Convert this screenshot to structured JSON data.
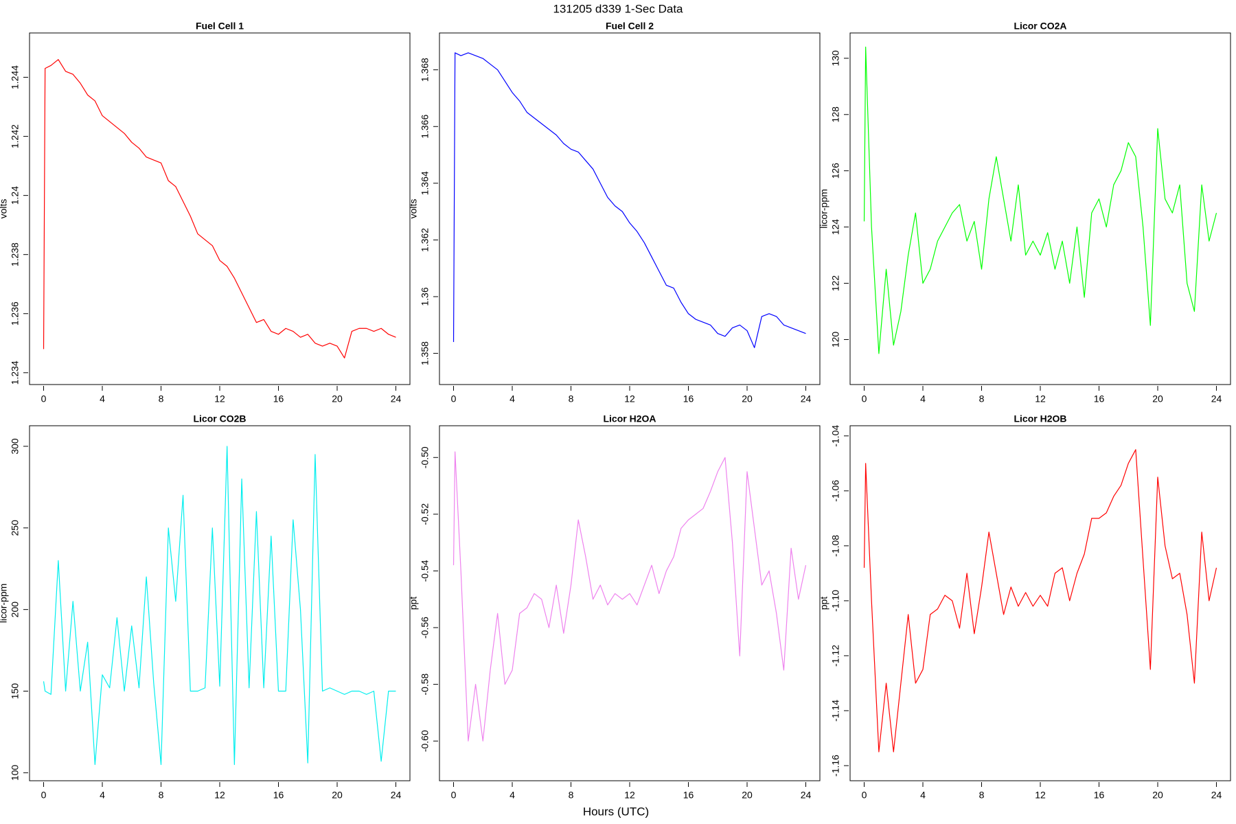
{
  "title": "131205   d339   1-Sec Data",
  "xlabel": "Hours (UTC)",
  "chart_data": [
    {
      "type": "line",
      "title": "Fuel Cell 1",
      "ylabel": "volts",
      "color": "#ff0000",
      "x": [
        0,
        0.1,
        0.5,
        1,
        1.5,
        2,
        2.5,
        3,
        3.5,
        4,
        4.5,
        5,
        5.5,
        6,
        6.5,
        7,
        7.5,
        8,
        8.5,
        9,
        9.5,
        10,
        10.5,
        11,
        11.5,
        12,
        12.5,
        13,
        13.5,
        14,
        14.5,
        15,
        15.5,
        16,
        16.5,
        17,
        17.5,
        18,
        18.5,
        19,
        19.5,
        20,
        20.5,
        21,
        21.5,
        22,
        22.5,
        23,
        23.5,
        24
      ],
      "values": [
        1.2348,
        1.2443,
        1.2444,
        1.2446,
        1.2442,
        1.2441,
        1.2438,
        1.2434,
        1.2432,
        1.2427,
        1.2425,
        1.2423,
        1.2421,
        1.2418,
        1.2416,
        1.2413,
        1.2412,
        1.2411,
        1.2405,
        1.2403,
        1.2398,
        1.2393,
        1.2387,
        1.2385,
        1.2383,
        1.2378,
        1.2376,
        1.2372,
        1.2367,
        1.2362,
        1.2357,
        1.2358,
        1.2354,
        1.2353,
        1.2355,
        1.2354,
        1.2352,
        1.2353,
        1.235,
        1.2349,
        1.235,
        1.2349,
        1.2345,
        1.2354,
        1.2355,
        1.2355,
        1.2354,
        1.2355,
        1.2353,
        1.2352
      ],
      "xlim": [
        -0.96,
        24.96
      ],
      "xticks": [
        0,
        4,
        8,
        12,
        16,
        20,
        24
      ],
      "ylim": [
        1.2336,
        1.2455
      ],
      "yticks": [
        1.234,
        1.236,
        1.238,
        1.24,
        1.242,
        1.244
      ]
    },
    {
      "type": "line",
      "title": "Fuel Cell 2",
      "ylabel": "volts",
      "color": "#0000ff",
      "x": [
        0,
        0.1,
        0.5,
        1,
        1.5,
        2,
        2.5,
        3,
        3.5,
        4,
        4.5,
        5,
        5.5,
        6,
        6.5,
        7,
        7.5,
        8,
        8.5,
        9,
        9.5,
        10,
        10.5,
        11,
        11.5,
        12,
        12.5,
        13,
        13.5,
        14,
        14.5,
        15,
        15.5,
        16,
        16.5,
        17,
        17.5,
        18,
        18.5,
        19,
        19.5,
        20,
        20.5,
        21,
        21.5,
        22,
        22.5,
        23,
        23.5,
        24
      ],
      "values": [
        1.3584,
        1.3686,
        1.3685,
        1.3686,
        1.3685,
        1.3684,
        1.3682,
        1.368,
        1.3676,
        1.3672,
        1.3669,
        1.3665,
        1.3663,
        1.3661,
        1.3659,
        1.3657,
        1.3654,
        1.3652,
        1.3651,
        1.3648,
        1.3645,
        1.364,
        1.3635,
        1.3632,
        1.363,
        1.3626,
        1.3623,
        1.3619,
        1.3614,
        1.3609,
        1.3604,
        1.3603,
        1.3598,
        1.3594,
        1.3592,
        1.3591,
        1.359,
        1.3587,
        1.3586,
        1.3589,
        1.359,
        1.3588,
        1.3582,
        1.3593,
        1.3594,
        1.3593,
        1.359,
        1.3589,
        1.3588,
        1.3587
      ],
      "xlim": [
        -0.96,
        24.96
      ],
      "xticks": [
        0,
        4,
        8,
        12,
        16,
        20,
        24
      ],
      "ylim": [
        1.3569,
        1.3693
      ],
      "yticks": [
        1.358,
        1.36,
        1.362,
        1.364,
        1.366,
        1.368
      ]
    },
    {
      "type": "line",
      "title": "Licor CO2A",
      "ylabel": "licor-ppm",
      "color": "#00ff00",
      "x": [
        0,
        0.1,
        0.5,
        1,
        1.5,
        2,
        2.5,
        3,
        3.5,
        4,
        4.5,
        5,
        5.5,
        6,
        6.5,
        7,
        7.5,
        8,
        8.5,
        9,
        9.5,
        10,
        10.5,
        11,
        11.5,
        12,
        12.5,
        13,
        13.5,
        14,
        14.5,
        15,
        15.5,
        16,
        16.5,
        17,
        17.5,
        18,
        18.5,
        19,
        19.5,
        20,
        20.5,
        21,
        21.5,
        22,
        22.5,
        23,
        23.5,
        24
      ],
      "values": [
        124.2,
        130.4,
        124,
        119.5,
        122.5,
        119.8,
        121,
        123,
        124.5,
        122,
        122.5,
        123.5,
        124,
        124.5,
        124.8,
        123.5,
        124.2,
        122.5,
        125,
        126.5,
        125,
        123.5,
        125.5,
        123,
        123.5,
        123,
        123.8,
        122.5,
        123.5,
        122,
        124,
        121.5,
        124.5,
        125,
        124,
        125.5,
        126,
        127,
        126.5,
        124,
        120.5,
        127.5,
        125,
        124.5,
        125.5,
        122,
        121,
        125.5,
        123.5,
        124.5
      ],
      "xlim": [
        -0.96,
        24.96
      ],
      "xticks": [
        0,
        4,
        8,
        12,
        16,
        20,
        24
      ],
      "ylim": [
        118.4,
        130.9
      ],
      "yticks": [
        120,
        122,
        124,
        126,
        128,
        130
      ]
    },
    {
      "type": "line",
      "title": "Licor CO2B",
      "ylabel": "licor-ppm",
      "color": "#00eeee",
      "x": [
        0,
        0.1,
        0.5,
        1,
        1.5,
        2,
        2.5,
        3,
        3.5,
        4,
        4.5,
        5,
        5.5,
        6,
        6.5,
        7,
        7.5,
        8,
        8.5,
        9,
        9.5,
        10,
        10.5,
        11,
        11.5,
        12,
        12.5,
        13,
        13.5,
        14,
        14.5,
        15,
        15.5,
        16,
        16.5,
        17,
        17.5,
        18,
        18.5,
        19,
        19.5,
        20,
        20.5,
        21,
        21.5,
        22,
        22.5,
        23,
        23.5,
        24
      ],
      "values": [
        156,
        150,
        148,
        230,
        150,
        205,
        150,
        180,
        105,
        160,
        152,
        195,
        150,
        190,
        152,
        220,
        155,
        105,
        250,
        205,
        270,
        150,
        150,
        152,
        250,
        153,
        300,
        105,
        280,
        152,
        260,
        152,
        245,
        150,
        150,
        255,
        200,
        106,
        295,
        150,
        152,
        150,
        148,
        150,
        150,
        148,
        150,
        107,
        150,
        150
      ],
      "xlim": [
        -0.96,
        24.96
      ],
      "xticks": [
        0,
        4,
        8,
        12,
        16,
        20,
        24
      ],
      "ylim": [
        95.1,
        312.6
      ],
      "yticks": [
        100,
        150,
        200,
        250,
        300
      ]
    },
    {
      "type": "line",
      "title": "Licor H2OA",
      "ylabel": "ppt",
      "color": "#ee82ee",
      "x": [
        0,
        0.1,
        0.5,
        1,
        1.5,
        2,
        2.5,
        3,
        3.5,
        4,
        4.5,
        5,
        5.5,
        6,
        6.5,
        7,
        7.5,
        8,
        8.5,
        9,
        9.5,
        10,
        10.5,
        11,
        11.5,
        12,
        12.5,
        13,
        13.5,
        14,
        14.5,
        15,
        15.5,
        16,
        16.5,
        17,
        17.5,
        18,
        18.5,
        19,
        19.5,
        20,
        20.5,
        21,
        21.5,
        22,
        22.5,
        23,
        23.5,
        24
      ],
      "values": [
        -0.538,
        -0.498,
        -0.54,
        -0.6,
        -0.58,
        -0.6,
        -0.575,
        -0.555,
        -0.58,
        -0.575,
        -0.555,
        -0.553,
        -0.548,
        -0.55,
        -0.56,
        -0.545,
        -0.562,
        -0.545,
        -0.522,
        -0.535,
        -0.55,
        -0.545,
        -0.552,
        -0.548,
        -0.55,
        -0.548,
        -0.552,
        -0.545,
        -0.538,
        -0.548,
        -0.54,
        -0.535,
        -0.525,
        -0.522,
        -0.52,
        -0.518,
        -0.512,
        -0.505,
        -0.5,
        -0.53,
        -0.57,
        -0.505,
        -0.525,
        -0.545,
        -0.54,
        -0.555,
        -0.575,
        -0.532,
        -0.55,
        -0.538
      ],
      "xlim": [
        -0.96,
        24.96
      ],
      "xticks": [
        0,
        4,
        8,
        12,
        16,
        20,
        24
      ],
      "ylim": [
        -0.614,
        -0.4888
      ],
      "yticks": [
        {
          "value": -0.6,
          "label": "-0.60"
        },
        -0.58,
        -0.56,
        -0.54,
        -0.52,
        {
          "value": -0.5,
          "label": "-0.50"
        }
      ]
    },
    {
      "type": "line",
      "title": "Licor H2OB",
      "ylabel": "ppt",
      "color": "#ff0000",
      "x": [
        0,
        0.1,
        0.5,
        1,
        1.5,
        2,
        2.5,
        3,
        3.5,
        4,
        4.5,
        5,
        5.5,
        6,
        6.5,
        7,
        7.5,
        8,
        8.5,
        9,
        9.5,
        10,
        10.5,
        11,
        11.5,
        12,
        12.5,
        13,
        13.5,
        14,
        14.5,
        15,
        15.5,
        16,
        16.5,
        17,
        17.5,
        18,
        18.5,
        19,
        19.5,
        20,
        20.5,
        21,
        21.5,
        22,
        22.5,
        23,
        23.5,
        24
      ],
      "values": [
        -1.088,
        -1.05,
        -1.1,
        -1.155,
        -1.13,
        -1.155,
        -1.13,
        -1.105,
        -1.13,
        -1.125,
        -1.105,
        -1.103,
        -1.098,
        -1.1,
        -1.11,
        -1.09,
        -1.112,
        -1.095,
        -1.075,
        -1.09,
        -1.105,
        -1.095,
        -1.102,
        -1.097,
        -1.102,
        -1.098,
        -1.102,
        -1.09,
        -1.088,
        -1.1,
        -1.09,
        -1.083,
        -1.07,
        -1.07,
        -1.068,
        -1.062,
        -1.058,
        -1.05,
        -1.045,
        -1.085,
        -1.125,
        -1.055,
        -1.08,
        -1.092,
        -1.09,
        -1.105,
        -1.13,
        -1.075,
        -1.1,
        -1.088
      ],
      "xlim": [
        -0.96,
        24.96
      ],
      "xticks": [
        0,
        4,
        8,
        12,
        16,
        20,
        24
      ],
      "ylim": [
        -1.1655,
        -1.0363
      ],
      "yticks": [
        -1.16,
        -1.14,
        -1.12,
        {
          "value": -1.1,
          "label": "-1.10"
        },
        -1.08,
        -1.06,
        -1.04
      ]
    }
  ]
}
